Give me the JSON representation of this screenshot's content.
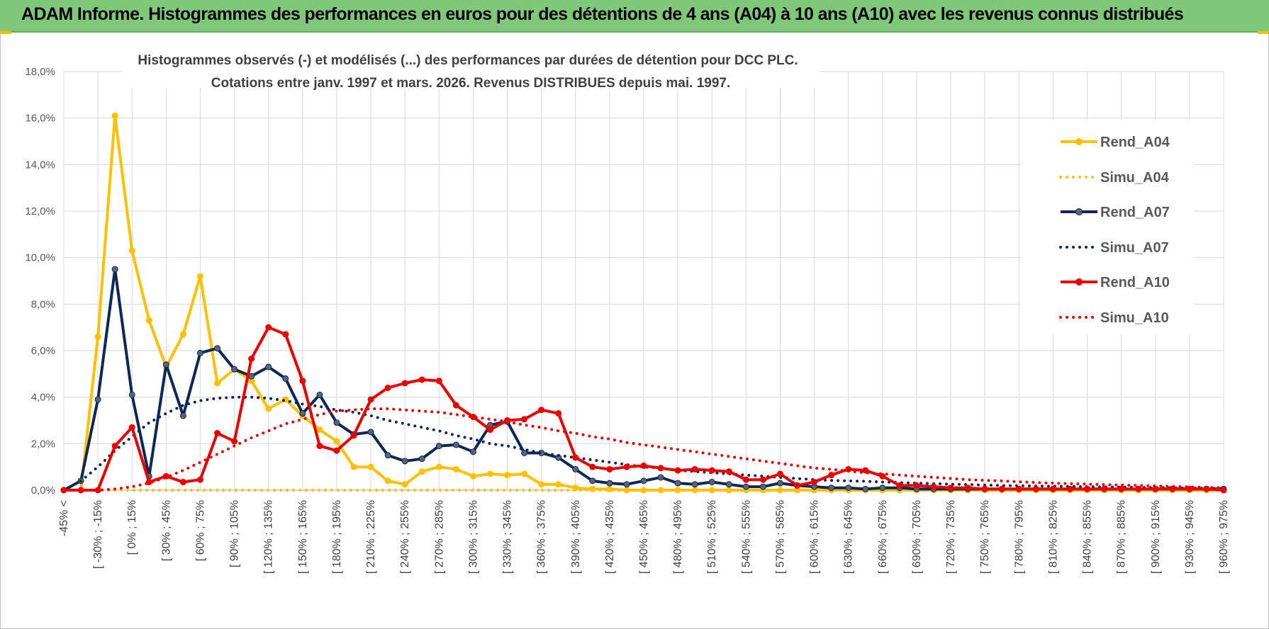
{
  "page": {
    "header_title": "ADAM Informe. Histogrammes des performances en euros pour des détentions de 4 ans (A04) à 10 ans (A10) avec les revenus connus distribués"
  },
  "colors": {
    "A04": "#ffc000",
    "A07": "#0d2758",
    "A10": "#ee0000",
    "grid": "#d9d9d9",
    "banner": "#7fc87a"
  },
  "chart_data": {
    "type": "line",
    "title": "Histogrammes observés (-) et modélisés (...) des performances par durées de détention pour DCC PLC.",
    "subtitle": "Cotations entre janv. 1997 et mars. 2026.  Revenus DISTRIBUES depuis mai. 1997.",
    "ylim": [
      0,
      18
    ],
    "yticks": [
      0,
      2,
      4,
      6,
      8,
      10,
      12,
      14,
      16,
      18
    ],
    "ytick_labels": [
      "0,0%",
      "2,0%",
      "4,0%",
      "6,0%",
      "8,0%",
      "10,0%",
      "12,0%",
      "14,0%",
      "16,0%",
      "18,0%"
    ],
    "x_count": 69,
    "xtick_labels": [
      {
        "i": 0,
        "label": "-45% <"
      },
      {
        "i": 2,
        "label": "[ -30% ; -15%"
      },
      {
        "i": 4,
        "label": "[ 0% ; 15%"
      },
      {
        "i": 6,
        "label": "[ 30% ; 45%"
      },
      {
        "i": 8,
        "label": "[ 60% ; 75%"
      },
      {
        "i": 10,
        "label": "[ 90% ; 105%"
      },
      {
        "i": 12,
        "label": "[ 120% ; 135%"
      },
      {
        "i": 14,
        "label": "[ 150% ; 165%"
      },
      {
        "i": 16,
        "label": "[ 180% ; 195%"
      },
      {
        "i": 18,
        "label": "[ 210% ; 225%"
      },
      {
        "i": 20,
        "label": "[ 240% ; 255%"
      },
      {
        "i": 22,
        "label": "[ 270% ; 285%"
      },
      {
        "i": 24,
        "label": "[ 300% ; 315%"
      },
      {
        "i": 26,
        "label": "[ 330% ; 345%"
      },
      {
        "i": 28,
        "label": "[ 360% ; 375%"
      },
      {
        "i": 30,
        "label": "[ 390% ; 405%"
      },
      {
        "i": 32,
        "label": "[ 420% ; 435%"
      },
      {
        "i": 34,
        "label": "[ 450% ; 465%"
      },
      {
        "i": 36,
        "label": "[ 480% ; 495%"
      },
      {
        "i": 38,
        "label": "[ 510% ; 525%"
      },
      {
        "i": 40,
        "label": "[ 540% ; 555%"
      },
      {
        "i": 42,
        "label": "[ 570% ; 585%"
      },
      {
        "i": 44,
        "label": "[ 600% ; 615%"
      },
      {
        "i": 46,
        "label": "[ 630% ; 645%"
      },
      {
        "i": 48,
        "label": "[ 660% ; 675%"
      },
      {
        "i": 50,
        "label": "[ 690% ; 705%"
      },
      {
        "i": 52,
        "label": "[ 720% ; 735%"
      },
      {
        "i": 54,
        "label": "[ 750% ; 765%"
      },
      {
        "i": 56,
        "label": "[ 780% ; 795%"
      },
      {
        "i": 58,
        "label": "[ 810% ; 825%"
      },
      {
        "i": 60,
        "label": "[ 840% ; 855%"
      },
      {
        "i": 62,
        "label": "[ 870% ; 885%"
      },
      {
        "i": 64,
        "label": "[ 900% ; 915%"
      },
      {
        "i": 66,
        "label": "[ 930% ; 945%"
      },
      {
        "i": 68,
        "label": "[ 960% ; 975%"
      }
    ],
    "series": [
      {
        "name": "Rend_A04",
        "style": "solid",
        "color": "#ffc000",
        "values": [
          0,
          0,
          6.6,
          16.1,
          10.3,
          7.3,
          5.3,
          6.7,
          9.2,
          4.6,
          5.2,
          4.7,
          3.5,
          3.9,
          3.2,
          2.6,
          2.1,
          1.0,
          1.0,
          0.4,
          0.25,
          0.8,
          1.0,
          0.9,
          0.6,
          0.7,
          0.65,
          0.7,
          0.25,
          0.25,
          0.1,
          0.05,
          0.05,
          0,
          0,
          0,
          0,
          0,
          0,
          0,
          0,
          0,
          0,
          0,
          0,
          0,
          0,
          0,
          0,
          0,
          0,
          0,
          0,
          0,
          0,
          0,
          0,
          0,
          0,
          0,
          0,
          0,
          0,
          0,
          0,
          0,
          0,
          0,
          0
        ]
      },
      {
        "name": "Simu_A04",
        "style": "dotted",
        "color": "#ffc000",
        "values": [
          0,
          0,
          0,
          0,
          0,
          0,
          0,
          0,
          0,
          0,
          0,
          0,
          0,
          0,
          0,
          0,
          0,
          0,
          0,
          0,
          0,
          0,
          0,
          0,
          0,
          0,
          0,
          0,
          0,
          0,
          0,
          0,
          0,
          0,
          0,
          0,
          0,
          0,
          0,
          0,
          0,
          0,
          0,
          0,
          0,
          0,
          0,
          0,
          0,
          0,
          0,
          0,
          0,
          0,
          0,
          0,
          0,
          0,
          0,
          0,
          0,
          0,
          0,
          0,
          0,
          0,
          0,
          0,
          0
        ]
      },
      {
        "name": "Rend_A07",
        "style": "solid",
        "color": "#0d2758",
        "values": [
          0,
          0.4,
          3.9,
          9.5,
          4.1,
          0.6,
          5.4,
          3.2,
          5.9,
          6.1,
          5.2,
          4.9,
          5.3,
          4.8,
          3.3,
          4.1,
          2.9,
          2.4,
          2.5,
          1.5,
          1.25,
          1.35,
          1.9,
          1.95,
          1.65,
          2.8,
          2.95,
          1.6,
          1.6,
          1.4,
          0.9,
          0.4,
          0.3,
          0.25,
          0.4,
          0.55,
          0.3,
          0.25,
          0.35,
          0.25,
          0.15,
          0.15,
          0.3,
          0.2,
          0.15,
          0.1,
          0.1,
          0.05,
          0.1,
          0.1,
          0.05,
          0.05,
          0.05,
          0.05,
          0.05,
          0.05,
          0.05,
          0.05,
          0.05,
          0.05,
          0.05,
          0.05,
          0.05,
          0.05,
          0.05,
          0.05,
          0.05,
          0.05,
          0.05
        ]
      },
      {
        "name": "Simu_A07",
        "style": "dotted",
        "color": "#0d2758",
        "values": [
          0,
          0.4,
          1.0,
          1.7,
          2.3,
          2.9,
          3.3,
          3.65,
          3.85,
          3.95,
          4.0,
          4.0,
          3.95,
          3.85,
          3.7,
          3.6,
          3.45,
          3.35,
          3.2,
          3.0,
          2.85,
          2.7,
          2.55,
          2.35,
          2.2,
          2.0,
          1.9,
          1.75,
          1.6,
          1.5,
          1.4,
          1.3,
          1.2,
          1.1,
          1.0,
          0.95,
          0.85,
          0.8,
          0.75,
          0.7,
          0.65,
          0.6,
          0.55,
          0.5,
          0.45,
          0.42,
          0.4,
          0.38,
          0.35,
          0.33,
          0.3,
          0.28,
          0.26,
          0.24,
          0.22,
          0.2,
          0.19,
          0.18,
          0.17,
          0.16,
          0.15,
          0.14,
          0.13,
          0.12,
          0.11,
          0.1,
          0.09,
          0.08,
          0.07
        ]
      },
      {
        "name": "Rend_A10",
        "style": "solid",
        "color": "#ee0000",
        "values": [
          0,
          0,
          0,
          1.9,
          2.7,
          0.35,
          0.6,
          0.35,
          0.45,
          2.45,
          2.1,
          5.65,
          7.0,
          6.7,
          4.7,
          1.9,
          1.7,
          2.35,
          3.9,
          4.4,
          4.6,
          4.75,
          4.7,
          3.65,
          3.15,
          2.6,
          3.0,
          3.05,
          3.45,
          3.3,
          1.4,
          1.0,
          0.9,
          1.0,
          1.05,
          0.95,
          0.85,
          0.9,
          0.85,
          0.8,
          0.45,
          0.45,
          0.7,
          0.2,
          0.35,
          0.65,
          0.9,
          0.85,
          0.6,
          0.2,
          0.2,
          0.15,
          0.1,
          0.1,
          0.05,
          0.05,
          0.05,
          0.05,
          0.05,
          0.05,
          0.05,
          0.05,
          0.05,
          0.05,
          0.05,
          0.05,
          0.05,
          0.05,
          0
        ]
      },
      {
        "name": "Simu_A10",
        "style": "dotted",
        "color": "#ee0000",
        "values": [
          0,
          0,
          0,
          0.05,
          0.15,
          0.3,
          0.55,
          0.85,
          1.2,
          1.55,
          1.9,
          2.25,
          2.55,
          2.85,
          3.05,
          3.25,
          3.4,
          3.45,
          3.5,
          3.5,
          3.45,
          3.4,
          3.35,
          3.25,
          3.15,
          3.05,
          2.95,
          2.8,
          2.7,
          2.55,
          2.45,
          2.3,
          2.2,
          2.05,
          1.95,
          1.85,
          1.75,
          1.65,
          1.55,
          1.45,
          1.35,
          1.25,
          1.15,
          1.05,
          0.95,
          0.9,
          0.82,
          0.75,
          0.7,
          0.65,
          0.6,
          0.55,
          0.5,
          0.45,
          0.42,
          0.4,
          0.36,
          0.33,
          0.3,
          0.28,
          0.26,
          0.24,
          0.22,
          0.2,
          0.18,
          0.16,
          0.14,
          0.12,
          0.1
        ]
      }
    ],
    "legend_position": "right"
  }
}
